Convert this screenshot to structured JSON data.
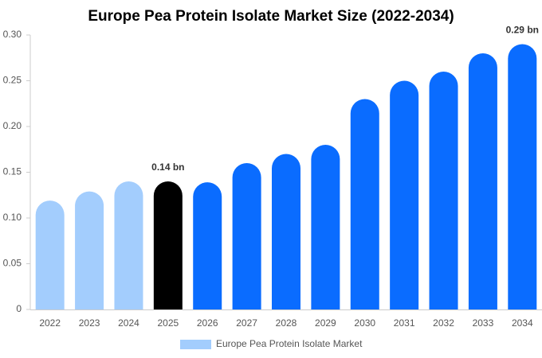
{
  "chart_data": {
    "type": "bar",
    "title": "Europe Pea Protein Isolate Market Size (2022-2034)",
    "categories": [
      "2022",
      "2023",
      "2024",
      "2025",
      "2026",
      "2027",
      "2028",
      "2029",
      "2030",
      "2031",
      "2032",
      "2033",
      "2034"
    ],
    "series": [
      {
        "name": "Europe Pea Protein Isolate Market",
        "color": "#a3cdfd",
        "values": [
          0.119,
          0.129,
          0.14,
          0.14,
          0.139,
          0.16,
          0.17,
          0.18,
          0.23,
          0.25,
          0.26,
          0.28,
          0.29
        ],
        "value_labels": [
          null,
          null,
          null,
          "0.14 bn",
          null,
          null,
          null,
          null,
          null,
          null,
          null,
          null,
          "0.29 bn"
        ],
        "colors": [
          "#a3cdfd",
          "#a3cdfd",
          "#a3cdfd",
          "#000000",
          "#0a6cff",
          "#0a6cff",
          "#0a6cff",
          "#0a6cff",
          "#0a6cff",
          "#0a6cff",
          "#0a6cff",
          "#0a6cff",
          "#0a6cff"
        ]
      }
    ],
    "ylim": [
      0,
      0.3
    ],
    "yticks": [
      0,
      0.05,
      {
        "value": 0.1,
        "label": "0.10"
      },
      0.15,
      {
        "value": 0.2,
        "label": "0.20"
      },
      0.25,
      {
        "value": 0.3,
        "label": "0.30"
      }
    ],
    "grid": false
  }
}
